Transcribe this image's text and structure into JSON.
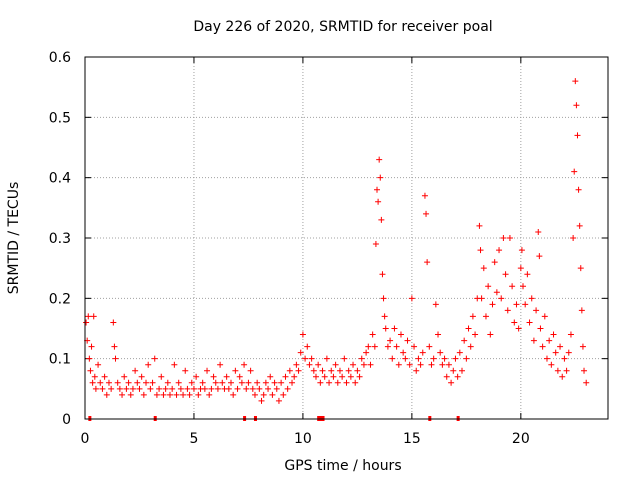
{
  "chart_data": {
    "type": "scatter",
    "title": "Day 226 of 2020, SRMTID for receiver poal",
    "xlabel": "GPS time / hours",
    "ylabel": "SRMTID / TECUs",
    "xlim": [
      0,
      24
    ],
    "ylim": [
      0,
      0.6
    ],
    "xticks": [
      0,
      5,
      10,
      15,
      20
    ],
    "xtick_labels": [
      "0",
      "5",
      "10",
      "15",
      "20"
    ],
    "yticks": [
      0,
      0.1,
      0.2,
      0.3,
      0.4,
      0.5,
      0.6
    ],
    "ytick_labels": [
      "0",
      "0.1",
      "0.2",
      "0.3",
      "0.4",
      "0.5",
      "0.6"
    ],
    "grid": true,
    "marker": "+",
    "color": "#ff0000",
    "series": [
      {
        "name": "SRMTID",
        "points": [
          [
            0.05,
            0.16
          ],
          [
            0.1,
            0.13
          ],
          [
            0.15,
            0.17
          ],
          [
            0.2,
            0.1
          ],
          [
            0.25,
            0.08
          ],
          [
            0.3,
            0.12
          ],
          [
            0.35,
            0.06
          ],
          [
            0.4,
            0.17
          ],
          [
            0.45,
            0.07
          ],
          [
            0.5,
            0.05
          ],
          [
            0.6,
            0.09
          ],
          [
            0.7,
            0.06
          ],
          [
            0.8,
            0.05
          ],
          [
            0.9,
            0.07
          ],
          [
            1.0,
            0.04
          ],
          [
            1.1,
            0.06
          ],
          [
            1.2,
            0.05
          ],
          [
            1.3,
            0.16
          ],
          [
            1.35,
            0.12
          ],
          [
            1.4,
            0.1
          ],
          [
            1.5,
            0.06
          ],
          [
            1.6,
            0.05
          ],
          [
            1.7,
            0.04
          ],
          [
            1.8,
            0.07
          ],
          [
            1.9,
            0.05
          ],
          [
            2.0,
            0.06
          ],
          [
            2.1,
            0.04
          ],
          [
            2.2,
            0.05
          ],
          [
            2.3,
            0.08
          ],
          [
            2.4,
            0.06
          ],
          [
            2.5,
            0.05
          ],
          [
            2.6,
            0.07
          ],
          [
            2.7,
            0.04
          ],
          [
            2.8,
            0.06
          ],
          [
            2.9,
            0.09
          ],
          [
            3.0,
            0.05
          ],
          [
            3.1,
            0.06
          ],
          [
            3.2,
            0.1
          ],
          [
            3.3,
            0.04
          ],
          [
            3.4,
            0.05
          ],
          [
            3.5,
            0.07
          ],
          [
            3.6,
            0.04
          ],
          [
            3.7,
            0.05
          ],
          [
            3.8,
            0.06
          ],
          [
            3.9,
            0.04
          ],
          [
            4.0,
            0.05
          ],
          [
            4.1,
            0.09
          ],
          [
            4.2,
            0.04
          ],
          [
            4.3,
            0.06
          ],
          [
            4.4,
            0.05
          ],
          [
            4.5,
            0.04
          ],
          [
            4.6,
            0.08
          ],
          [
            4.7,
            0.05
          ],
          [
            4.8,
            0.04
          ],
          [
            4.9,
            0.06
          ],
          [
            5.0,
            0.05
          ],
          [
            5.1,
            0.07
          ],
          [
            5.2,
            0.04
          ],
          [
            5.3,
            0.05
          ],
          [
            5.4,
            0.06
          ],
          [
            5.5,
            0.05
          ],
          [
            5.6,
            0.08
          ],
          [
            5.7,
            0.04
          ],
          [
            5.8,
            0.05
          ],
          [
            5.9,
            0.07
          ],
          [
            6.0,
            0.06
          ],
          [
            6.1,
            0.05
          ],
          [
            6.2,
            0.09
          ],
          [
            6.3,
            0.06
          ],
          [
            6.4,
            0.05
          ],
          [
            6.5,
            0.07
          ],
          [
            6.6,
            0.05
          ],
          [
            6.7,
            0.06
          ],
          [
            6.8,
            0.04
          ],
          [
            6.9,
            0.08
          ],
          [
            7.0,
            0.05
          ],
          [
            7.1,
            0.07
          ],
          [
            7.2,
            0.06
          ],
          [
            7.3,
            0.09
          ],
          [
            7.4,
            0.05
          ],
          [
            7.5,
            0.06
          ],
          [
            7.6,
            0.08
          ],
          [
            7.7,
            0.05
          ],
          [
            7.8,
            0.04
          ],
          [
            7.9,
            0.06
          ],
          [
            8.0,
            0.05
          ],
          [
            8.1,
            0.03
          ],
          [
            8.2,
            0.04
          ],
          [
            8.3,
            0.06
          ],
          [
            8.4,
            0.05
          ],
          [
            8.5,
            0.07
          ],
          [
            8.6,
            0.04
          ],
          [
            8.7,
            0.06
          ],
          [
            8.8,
            0.05
          ],
          [
            8.9,
            0.03
          ],
          [
            9.0,
            0.06
          ],
          [
            9.1,
            0.04
          ],
          [
            9.2,
            0.07
          ],
          [
            9.3,
            0.05
          ],
          [
            9.4,
            0.08
          ],
          [
            9.5,
            0.06
          ],
          [
            9.6,
            0.07
          ],
          [
            9.7,
            0.09
          ],
          [
            9.8,
            0.08
          ],
          [
            9.9,
            0.11
          ],
          [
            10.0,
            0.14
          ],
          [
            10.1,
            0.1
          ],
          [
            10.2,
            0.12
          ],
          [
            10.3,
            0.09
          ],
          [
            10.4,
            0.1
          ],
          [
            10.5,
            0.08
          ],
          [
            10.6,
            0.07
          ],
          [
            10.7,
            0.09
          ],
          [
            10.8,
            0.06
          ],
          [
            10.9,
            0.08
          ],
          [
            11.0,
            0.07
          ],
          [
            11.1,
            0.1
          ],
          [
            11.2,
            0.06
          ],
          [
            11.3,
            0.08
          ],
          [
            11.4,
            0.07
          ],
          [
            11.5,
            0.09
          ],
          [
            11.6,
            0.06
          ],
          [
            11.7,
            0.08
          ],
          [
            11.8,
            0.07
          ],
          [
            11.9,
            0.1
          ],
          [
            12.0,
            0.06
          ],
          [
            12.1,
            0.08
          ],
          [
            12.2,
            0.07
          ],
          [
            12.3,
            0.09
          ],
          [
            12.4,
            0.06
          ],
          [
            12.5,
            0.08
          ],
          [
            12.6,
            0.07
          ],
          [
            12.7,
            0.1
          ],
          [
            12.8,
            0.09
          ],
          [
            12.9,
            0.11
          ],
          [
            13.0,
            0.12
          ],
          [
            13.1,
            0.09
          ],
          [
            13.2,
            0.14
          ],
          [
            13.3,
            0.12
          ],
          [
            13.35,
            0.29
          ],
          [
            13.4,
            0.38
          ],
          [
            13.45,
            0.36
          ],
          [
            13.5,
            0.43
          ],
          [
            13.55,
            0.4
          ],
          [
            13.6,
            0.33
          ],
          [
            13.65,
            0.24
          ],
          [
            13.7,
            0.2
          ],
          [
            13.75,
            0.17
          ],
          [
            13.8,
            0.15
          ],
          [
            13.9,
            0.12
          ],
          [
            14.0,
            0.13
          ],
          [
            14.1,
            0.1
          ],
          [
            14.2,
            0.15
          ],
          [
            14.3,
            0.12
          ],
          [
            14.4,
            0.09
          ],
          [
            14.5,
            0.14
          ],
          [
            14.6,
            0.11
          ],
          [
            14.7,
            0.1
          ],
          [
            14.8,
            0.13
          ],
          [
            14.9,
            0.09
          ],
          [
            15.0,
            0.2
          ],
          [
            15.1,
            0.12
          ],
          [
            15.2,
            0.08
          ],
          [
            15.3,
            0.1
          ],
          [
            15.4,
            0.09
          ],
          [
            15.5,
            0.11
          ],
          [
            15.6,
            0.37
          ],
          [
            15.65,
            0.34
          ],
          [
            15.7,
            0.26
          ],
          [
            15.8,
            0.12
          ],
          [
            15.9,
            0.09
          ],
          [
            16.0,
            0.1
          ],
          [
            16.1,
            0.19
          ],
          [
            16.2,
            0.14
          ],
          [
            16.3,
            0.11
          ],
          [
            16.4,
            0.09
          ],
          [
            16.5,
            0.1
          ],
          [
            16.6,
            0.07
          ],
          [
            16.7,
            0.09
          ],
          [
            16.8,
            0.06
          ],
          [
            16.9,
            0.08
          ],
          [
            17.0,
            0.1
          ],
          [
            17.1,
            0.07
          ],
          [
            17.2,
            0.11
          ],
          [
            17.3,
            0.08
          ],
          [
            17.4,
            0.13
          ],
          [
            17.5,
            0.1
          ],
          [
            17.6,
            0.15
          ],
          [
            17.7,
            0.12
          ],
          [
            17.8,
            0.17
          ],
          [
            17.9,
            0.14
          ],
          [
            18.0,
            0.2
          ],
          [
            18.1,
            0.32
          ],
          [
            18.15,
            0.28
          ],
          [
            18.2,
            0.2
          ],
          [
            18.3,
            0.25
          ],
          [
            18.4,
            0.17
          ],
          [
            18.5,
            0.22
          ],
          [
            18.6,
            0.14
          ],
          [
            18.7,
            0.19
          ],
          [
            18.8,
            0.26
          ],
          [
            18.9,
            0.21
          ],
          [
            19.0,
            0.28
          ],
          [
            19.1,
            0.2
          ],
          [
            19.2,
            0.3
          ],
          [
            19.3,
            0.24
          ],
          [
            19.4,
            0.18
          ],
          [
            19.5,
            0.3
          ],
          [
            19.6,
            0.22
          ],
          [
            19.7,
            0.16
          ],
          [
            19.8,
            0.19
          ],
          [
            19.9,
            0.15
          ],
          [
            20.0,
            0.25
          ],
          [
            20.05,
            0.28
          ],
          [
            20.1,
            0.22
          ],
          [
            20.2,
            0.19
          ],
          [
            20.3,
            0.24
          ],
          [
            20.4,
            0.16
          ],
          [
            20.5,
            0.2
          ],
          [
            20.6,
            0.13
          ],
          [
            20.7,
            0.18
          ],
          [
            20.8,
            0.31
          ],
          [
            20.85,
            0.27
          ],
          [
            20.9,
            0.15
          ],
          [
            21.0,
            0.12
          ],
          [
            21.1,
            0.17
          ],
          [
            21.2,
            0.1
          ],
          [
            21.3,
            0.13
          ],
          [
            21.4,
            0.09
          ],
          [
            21.5,
            0.14
          ],
          [
            21.6,
            0.11
          ],
          [
            21.7,
            0.08
          ],
          [
            21.8,
            0.12
          ],
          [
            21.9,
            0.07
          ],
          [
            22.0,
            0.1
          ],
          [
            22.1,
            0.08
          ],
          [
            22.2,
            0.11
          ],
          [
            22.3,
            0.14
          ],
          [
            22.4,
            0.3
          ],
          [
            22.45,
            0.41
          ],
          [
            22.5,
            0.56
          ],
          [
            22.55,
            0.52
          ],
          [
            22.6,
            0.47
          ],
          [
            22.65,
            0.38
          ],
          [
            22.7,
            0.32
          ],
          [
            22.75,
            0.25
          ],
          [
            22.8,
            0.18
          ],
          [
            22.85,
            0.12
          ],
          [
            22.9,
            0.08
          ],
          [
            23.0,
            0.06
          ]
        ]
      }
    ]
  }
}
